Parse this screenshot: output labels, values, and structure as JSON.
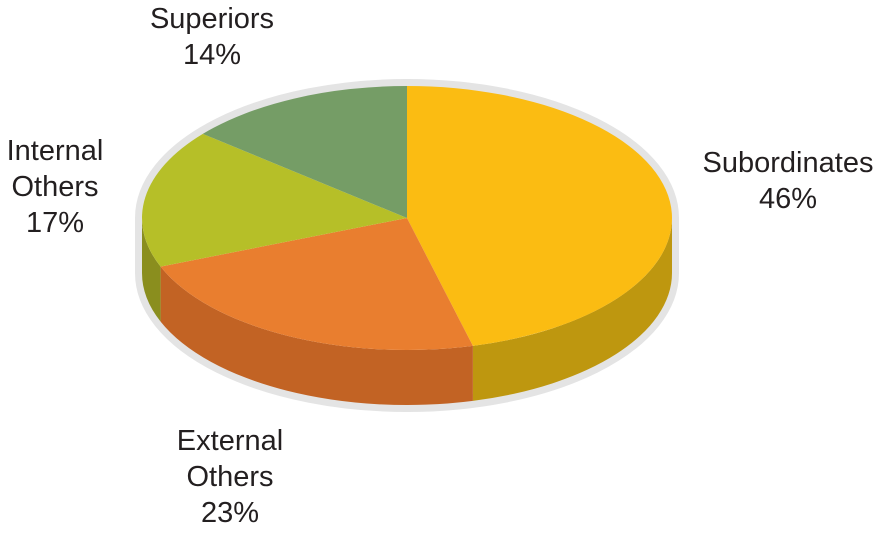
{
  "chart_data": {
    "type": "pie",
    "style": "3d",
    "title": "",
    "start_angle_deg": -90,
    "direction": "clockwise",
    "slices": [
      {
        "label": "Subordinates",
        "value": 46,
        "value_label": "46%",
        "color": "#FBBC12",
        "side_color": "#BE970F"
      },
      {
        "label": "External Others",
        "value": 23,
        "value_label": "23%",
        "color": "#E97E2F",
        "side_color": "#C26324"
      },
      {
        "label": "Internal Others",
        "value": 17,
        "value_label": "17%",
        "color": "#B6BF28",
        "side_color": "#8A8E1E"
      },
      {
        "label": "Superiors",
        "value": 14,
        "value_label": "14%",
        "color": "#759D66",
        "side_color": "#5B7F4F"
      }
    ],
    "legend": "none",
    "data_labels": "outside"
  }
}
